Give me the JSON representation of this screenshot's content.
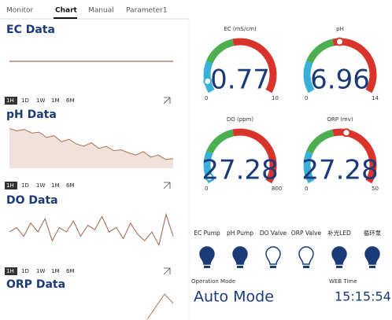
{
  "tabs": [
    "Monitor",
    "Chart",
    "Manual",
    "Parameter1"
  ],
  "active_tab": 1,
  "ranges": [
    "1H",
    "1D",
    "1W",
    "1M",
    "6M"
  ],
  "charts": [
    {
      "title": "EC Data",
      "color": "#7a4a3a",
      "ylim": [
        0,
        1
      ],
      "values": [
        0.5,
        0.5
      ]
    },
    {
      "title": "pH Data",
      "color": "#b07050",
      "area": true,
      "ylim": [
        0,
        1
      ],
      "values": [
        0.9,
        0.85,
        0.88,
        0.8,
        0.82,
        0.7,
        0.74,
        0.6,
        0.66,
        0.55,
        0.5,
        0.58,
        0.45,
        0.5,
        0.4,
        0.42,
        0.35,
        0.3,
        0.38,
        0.25,
        0.3,
        0.2,
        0.22
      ]
    },
    {
      "title": "DO Data",
      "color": "#a0604a",
      "ylim": [
        0,
        1
      ],
      "values": [
        0.5,
        0.6,
        0.4,
        0.7,
        0.5,
        0.8,
        0.3,
        0.6,
        0.5,
        0.75,
        0.4,
        0.65,
        0.55,
        0.85,
        0.5,
        0.6,
        0.35,
        0.7,
        0.45,
        0.3,
        0.5,
        0.2,
        0.9,
        0.4
      ]
    },
    {
      "title": "ORP Data",
      "color": "#b07050",
      "ylim": [
        0,
        1
      ],
      "values": [
        null,
        null,
        null,
        null,
        null,
        null,
        null,
        null,
        null,
        null,
        null,
        null,
        null,
        null,
        null,
        null,
        0.2,
        0.6,
        1.0,
        0.7
      ]
    }
  ],
  "gauges": [
    {
      "label": "EC (mS/cm)",
      "value": 0.77,
      "min": 0,
      "max": 10
    },
    {
      "label": "pH",
      "value": 6.96,
      "min": 0,
      "max": 14
    },
    {
      "label": "DO (ppm)",
      "value": 27.28,
      "min": 0,
      "max": 800
    },
    {
      "label": "ORP (mv)",
      "value": 27.28,
      "min": 0,
      "max": 50
    }
  ],
  "devices": [
    {
      "label": "EC Pump",
      "on": true
    },
    {
      "label": "pH Pump",
      "on": true
    },
    {
      "label": "DO Valve",
      "on": false
    },
    {
      "label": "ORP Valve",
      "on": false
    },
    {
      "label": "补光LED",
      "on": true
    },
    {
      "label": "循环泵",
      "on": true
    }
  ],
  "operation": {
    "label": "Operation Mode",
    "value": "Auto  Mode"
  },
  "web_time": {
    "label": "WEB Time",
    "value": "15:15:54"
  }
}
